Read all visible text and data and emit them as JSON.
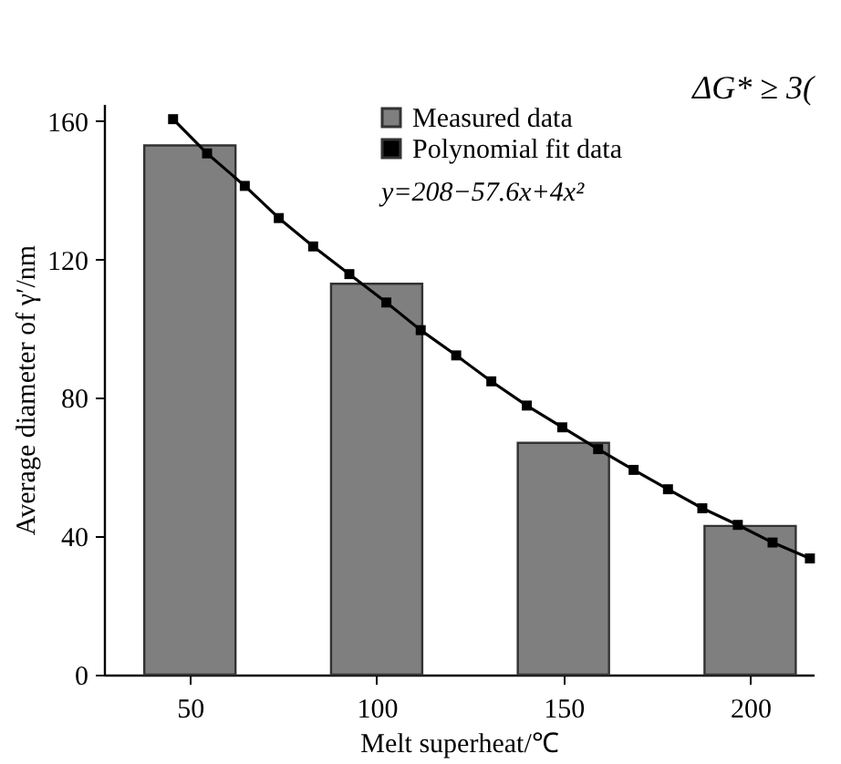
{
  "chart_data": {
    "type": "bar",
    "xlabel": "Melt superheat/℃",
    "ylabel": "Average diameter of γ′/nm",
    "x": [
      50,
      100,
      150,
      200
    ],
    "series": [
      {
        "name": "Measured data",
        "color": "#7f7f7f",
        "values": [
          153,
          113,
          67,
          43
        ]
      },
      {
        "name": "Polynomial fit data",
        "type": "line",
        "color": "#000000",
        "x": [
          45.5,
          54.6,
          64.7,
          73.8,
          83,
          92.7,
          102.6,
          111.8,
          121.3,
          130.7,
          140.2,
          149.7,
          159.3,
          168.8,
          178,
          187.2,
          196.7,
          206,
          216
        ],
        "values": [
          160.6,
          150.7,
          141.3,
          132,
          123.8,
          115.8,
          107.6,
          99.6,
          92.3,
          84.8,
          77.8,
          71.5,
          65.2,
          59.2,
          53.6,
          48.1,
          43.3,
          38.2,
          33.6
        ]
      }
    ],
    "annotations": [
      "y=208−57.6x+4x²",
      "ΔG* ≥ 3("
    ],
    "xlim": [
      27,
      217
    ],
    "xticks": [
      50,
      100,
      150,
      200
    ],
    "ylim": [
      0,
      165
    ],
    "yticks": [
      0,
      40,
      80,
      120,
      160
    ],
    "grid": false,
    "legend": "top right",
    "marker": "square",
    "line_style": "solid"
  }
}
